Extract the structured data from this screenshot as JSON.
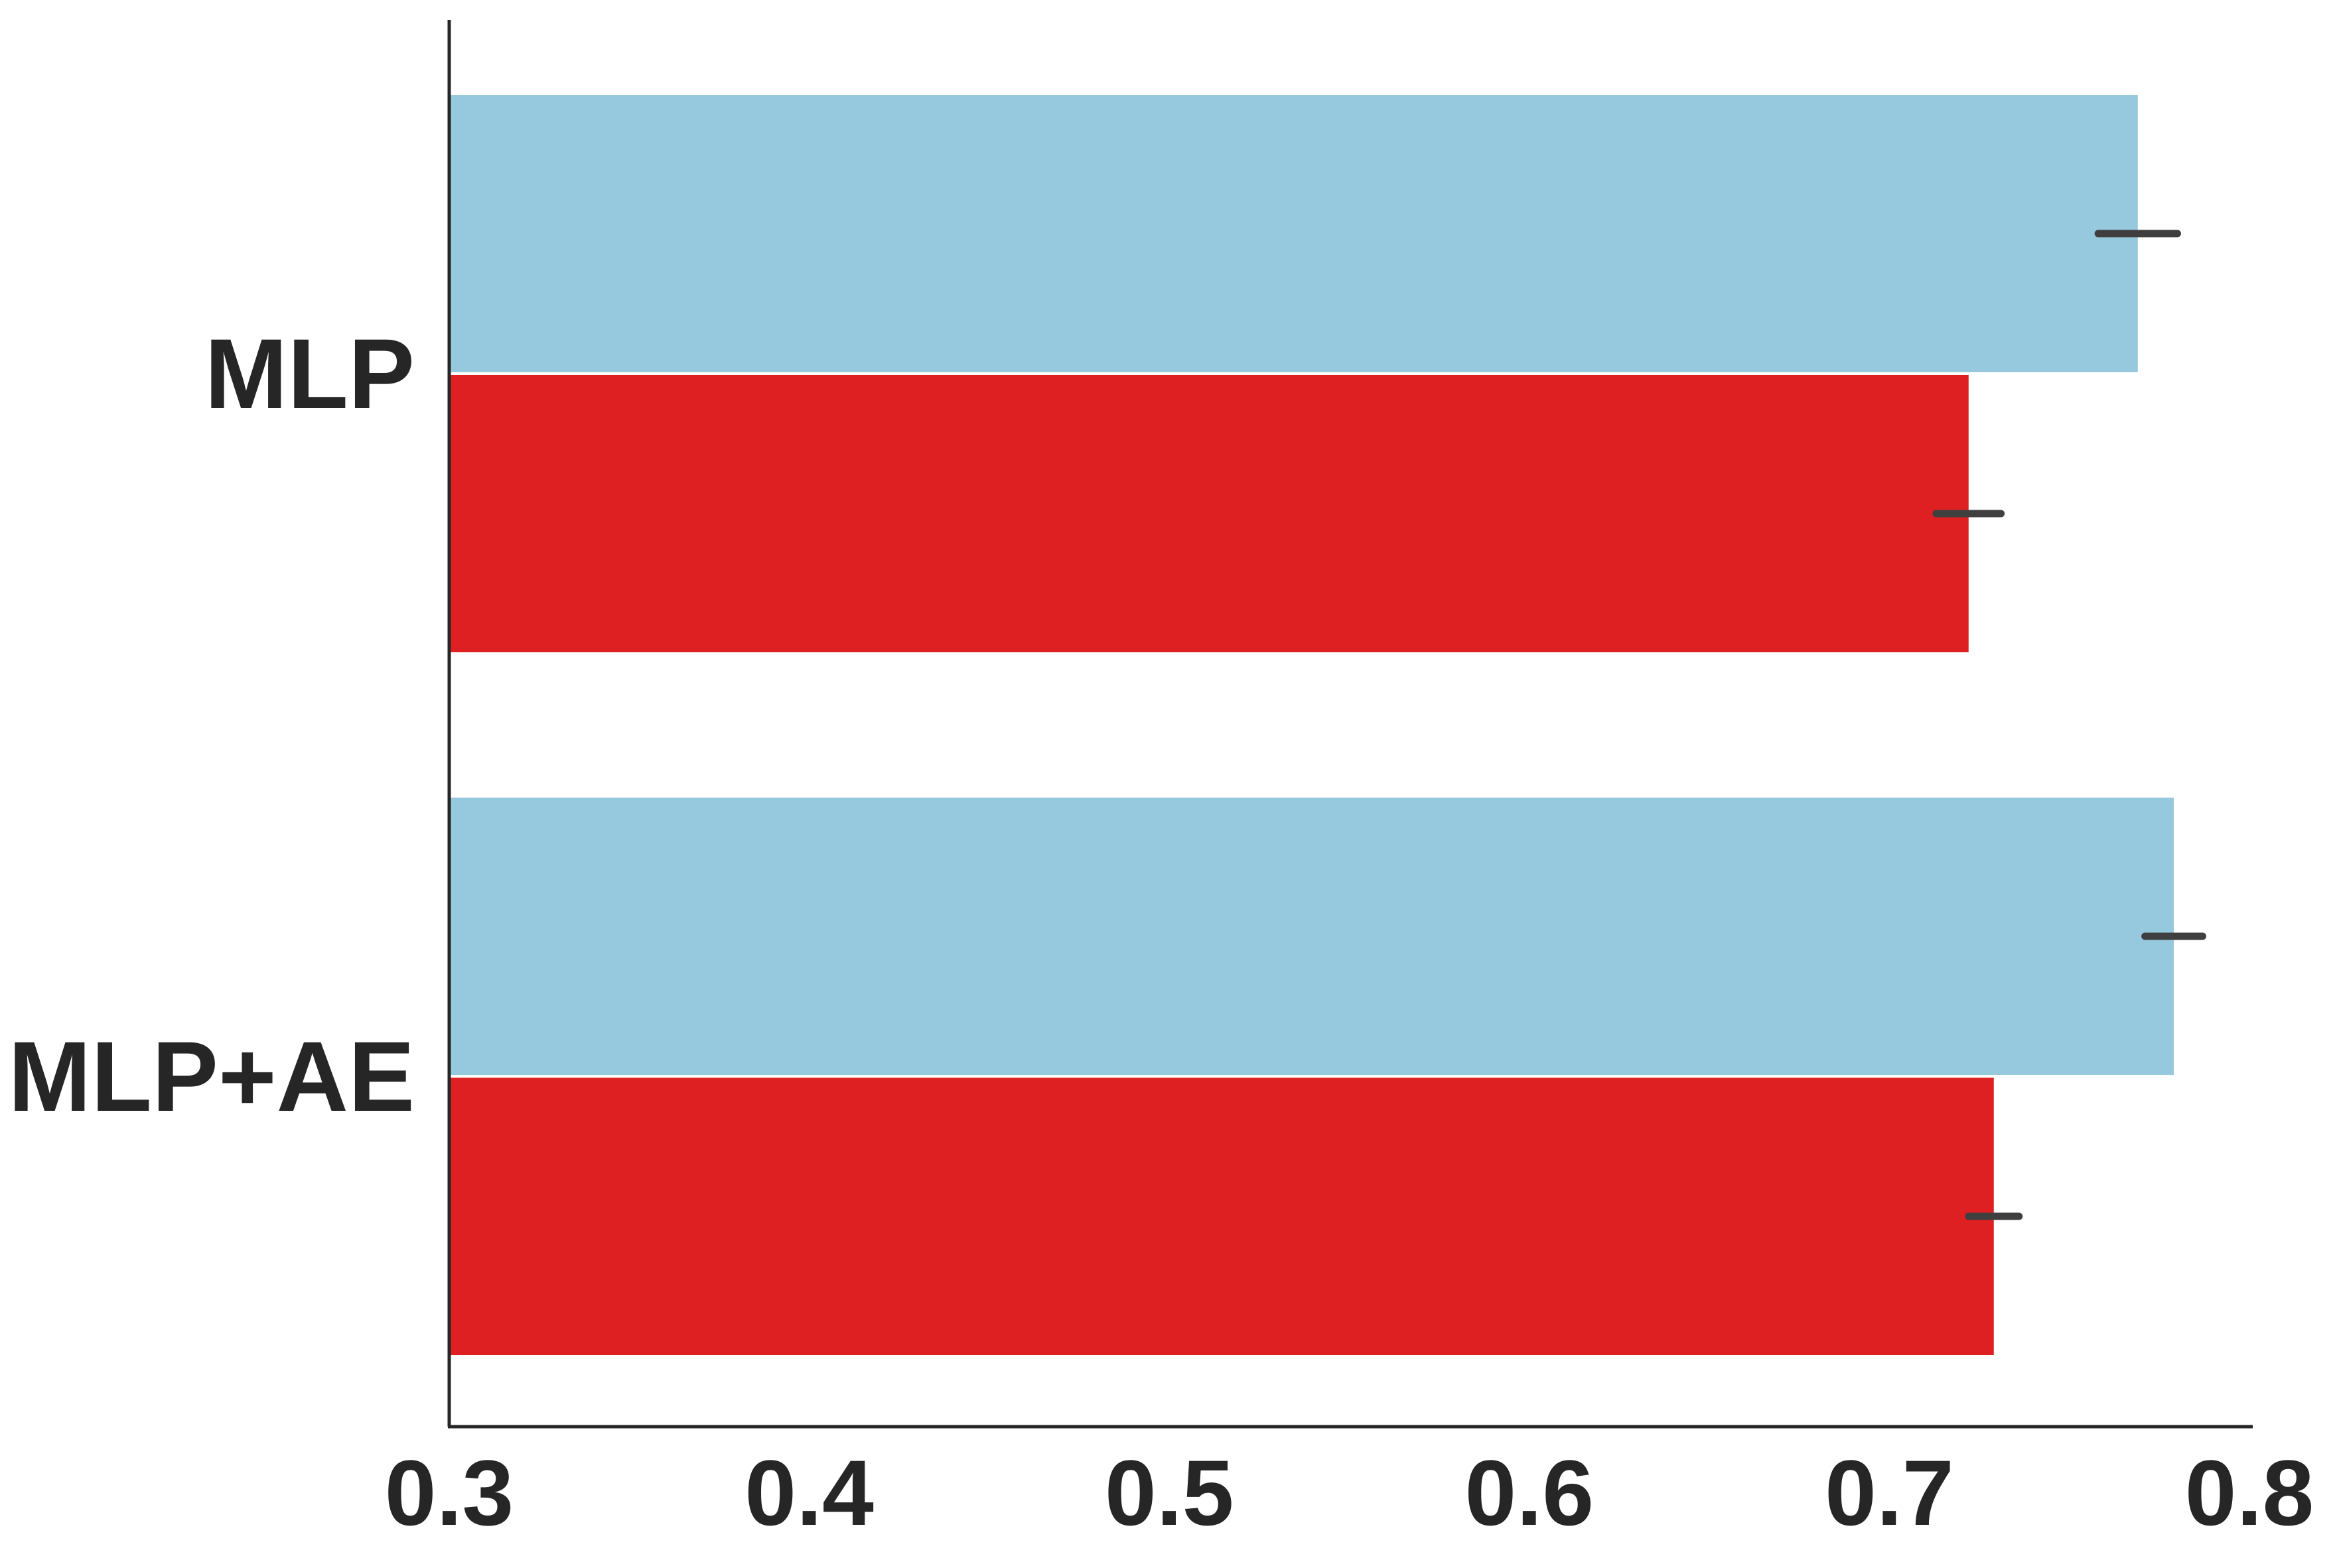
{
  "chart_data": {
    "type": "bar",
    "orientation": "horizontal",
    "title": "",
    "xlabel": "",
    "ylabel": "",
    "categories": [
      "MLP",
      "MLP+AE"
    ],
    "series": [
      {
        "color": "#97c9de",
        "values": [
          0.769,
          0.779
        ],
        "errors": [
          0.011,
          0.008
        ]
      },
      {
        "color": "#df2022",
        "values": [
          0.722,
          0.729
        ],
        "errors": [
          0.009,
          0.007
        ]
      }
    ],
    "xlim": [
      0.3,
      0.8
    ],
    "xticks": [
      "0.3",
      "0.4",
      "0.5",
      "0.6",
      "0.7",
      "0.8"
    ],
    "grid": false,
    "legend": "none"
  }
}
